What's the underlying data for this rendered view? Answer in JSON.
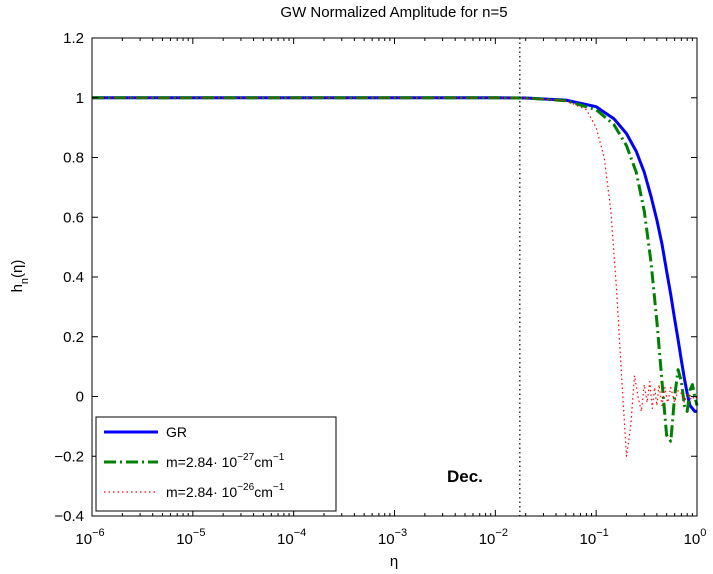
{
  "chart_data": {
    "type": "line",
    "title": "GW Normalized Amplitude for n=5",
    "xlabel": "η",
    "ylabel": "h_n(η)",
    "xscale": "log",
    "xlim": [
      1e-06,
      1
    ],
    "ylim": [
      -0.4,
      1.2
    ],
    "grid": false,
    "legend_position": "bottom-left",
    "x_ticks": [
      {
        "value": 1e-06,
        "base": "10",
        "exp": "−6"
      },
      {
        "value": 1e-05,
        "base": "10",
        "exp": "−5"
      },
      {
        "value": 0.0001,
        "base": "10",
        "exp": "−4"
      },
      {
        "value": 0.001,
        "base": "10",
        "exp": "−3"
      },
      {
        "value": 0.01,
        "base": "10",
        "exp": "−2"
      },
      {
        "value": 0.1,
        "base": "10",
        "exp": "−1"
      },
      {
        "value": 1,
        "base": "10",
        "exp": "0"
      }
    ],
    "y_ticks": [
      "−0.4",
      "−0.2",
      "0",
      "0.2",
      "0.4",
      "0.6",
      "0.8",
      "1",
      "1.2"
    ],
    "y_tick_values": [
      -0.4,
      -0.2,
      0,
      0.2,
      0.4,
      0.6,
      0.8,
      1,
      1.2
    ],
    "annotation": {
      "text": "Dec.",
      "x": 0.0175
    },
    "series": [
      {
        "name": "GR",
        "legend_parts": {
          "text": "GR"
        },
        "color": "#0000ff",
        "style": "solid",
        "x": [
          1e-06,
          0.001,
          0.01,
          0.02,
          0.05,
          0.1,
          0.15,
          0.2,
          0.25,
          0.3,
          0.35,
          0.4,
          0.45,
          0.5,
          0.55,
          0.6,
          0.65,
          0.7,
          0.75,
          0.8,
          0.85,
          0.9,
          0.95,
          1.0
        ],
        "y": [
          1,
          1,
          1,
          0.999,
          0.992,
          0.97,
          0.93,
          0.88,
          0.82,
          0.75,
          0.67,
          0.59,
          0.51,
          0.42,
          0.34,
          0.26,
          0.19,
          0.12,
          0.06,
          0.01,
          -0.03,
          -0.04,
          -0.05,
          -0.05
        ]
      },
      {
        "name": "m=2.84· 10^-27 cm^-1",
        "legend_parts": {
          "text": "m=2.84· 10",
          "exp1": "−27",
          "unit": "cm",
          "exp2": "−1"
        },
        "color": "#008000",
        "style": "dashdot",
        "x": [
          1e-06,
          0.001,
          0.01,
          0.02,
          0.05,
          0.1,
          0.15,
          0.2,
          0.25,
          0.3,
          0.35,
          0.4,
          0.45,
          0.5,
          0.55,
          0.6,
          0.65,
          0.7,
          0.75,
          0.8,
          0.85,
          0.9,
          0.95,
          1.0
        ],
        "y": [
          1,
          1,
          1,
          0.999,
          0.99,
          0.96,
          0.91,
          0.84,
          0.75,
          0.62,
          0.45,
          0.25,
          0.05,
          -0.13,
          -0.15,
          0.0,
          0.09,
          0.05,
          -0.03,
          -0.05,
          0.02,
          0.04,
          0.0,
          -0.03
        ]
      },
      {
        "name": "m=2.84· 10^-26 cm^-1",
        "legend_parts": {
          "text": "m=2.84· 10",
          "exp1": "−26",
          "unit": "cm",
          "exp2": "−1"
        },
        "color": "#ff0000",
        "style": "dotted",
        "x": [
          1e-06,
          0.001,
          0.01,
          0.02,
          0.05,
          0.08,
          0.1,
          0.12,
          0.14,
          0.16,
          0.18,
          0.2,
          0.22,
          0.24,
          0.26,
          0.28,
          0.3,
          0.32,
          0.34,
          0.36,
          0.38,
          0.4,
          0.42,
          0.45,
          0.48,
          0.51,
          0.55,
          0.6,
          0.65,
          0.7,
          0.75,
          0.8,
          0.85,
          0.9,
          0.95,
          1.0
        ],
        "y": [
          1,
          1,
          1,
          0.999,
          0.99,
          0.96,
          0.9,
          0.8,
          0.62,
          0.35,
          0.05,
          -0.2,
          -0.1,
          0.07,
          0.0,
          -0.05,
          0.04,
          -0.02,
          0.05,
          -0.04,
          0.03,
          -0.03,
          0.04,
          -0.03,
          0.03,
          -0.02,
          0.03,
          -0.02,
          0.02,
          0.01,
          -0.02,
          0.01,
          -0.01,
          0.0,
          -0.01,
          0.0
        ]
      }
    ]
  }
}
